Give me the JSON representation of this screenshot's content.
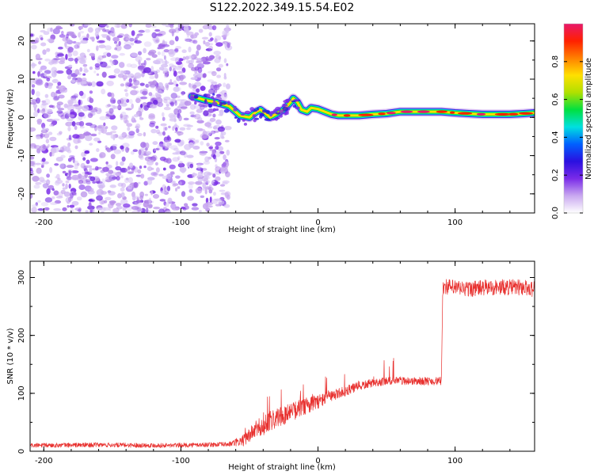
{
  "figure": {
    "title": "S122.2022.349.15.54.E02"
  },
  "chart_data": [
    {
      "type": "heatmap",
      "title": "S122.2022.349.15.54.E02",
      "xlabel": "Height of straight line (km)",
      "ylabel": "Frequency (Hz)",
      "xlim": [
        -210,
        158
      ],
      "ylim": [
        -25,
        24.5
      ],
      "xticks": [
        -200,
        -100,
        0,
        100
      ],
      "yticks": [
        -20,
        -10,
        0,
        10,
        20
      ],
      "grid": false,
      "colorbar": {
        "label": "Normalized spectral amplitude",
        "range": [
          0,
          1
        ],
        "ticks": [
          0.0,
          0.2,
          0.4,
          0.6,
          0.8
        ],
        "colormap": [
          "#ffffff",
          "#c9a8f0",
          "#7a2be8",
          "#2a10e0",
          "#0060ff",
          "#00e0e0",
          "#00e040",
          "#b0e000",
          "#ffe000",
          "#ff8000",
          "#ff2000",
          "#e8186a"
        ]
      },
      "noise_region_x": [
        -210,
        -65
      ],
      "signal_track": {
        "x": [
          -92,
          -82,
          -75,
          -65,
          -60,
          -57,
          -50,
          -45,
          -42,
          -38,
          -35,
          -30,
          -25,
          -20,
          -18,
          -15,
          -12,
          -8,
          -5,
          0,
          5,
          10,
          15,
          20,
          30,
          40,
          50,
          60,
          70,
          80,
          90,
          100,
          110,
          120,
          130,
          140,
          150,
          158
        ],
        "y": [
          5.5,
          4.5,
          4.0,
          3.0,
          1.5,
          0.5,
          0.0,
          1.5,
          2.0,
          1.0,
          0.0,
          1.0,
          2.0,
          4.0,
          5.0,
          4.0,
          2.0,
          1.5,
          2.5,
          2.2,
          1.5,
          0.8,
          0.5,
          0.5,
          0.5,
          0.8,
          1.0,
          1.5,
          1.5,
          1.5,
          1.5,
          1.2,
          1.0,
          0.8,
          0.8,
          0.8,
          1.0,
          1.2
        ]
      }
    },
    {
      "type": "line",
      "xlabel": "Height of straight line (km)",
      "ylabel": "SNR (10 * v/v)",
      "xlim": [
        -210,
        158
      ],
      "ylim": [
        0,
        328
      ],
      "xticks": [
        -200,
        -100,
        0,
        100
      ],
      "yticks": [
        0,
        100,
        200,
        300
      ],
      "grid": false,
      "line_color": "#e8312f",
      "series": [
        {
          "trend_x": [
            -210,
            -160,
            -110,
            -65,
            -55,
            -45,
            -35,
            -25,
            -15,
            -5,
            0,
            10,
            20,
            30,
            40,
            50,
            60,
            70,
            80,
            90,
            91,
            100,
            110,
            120,
            130,
            140,
            150,
            158
          ],
          "trend_y": [
            10,
            11,
            10,
            12,
            18,
            38,
            52,
            62,
            72,
            82,
            86,
            95,
            104,
            112,
            118,
            121,
            122,
            121,
            121,
            121,
            285,
            282,
            280,
            282,
            283,
            283,
            283,
            280
          ],
          "noise_x": [
            -210,
            -65,
            -55,
            -40,
            -10,
            10,
            40,
            90,
            91,
            158
          ],
          "noise_amplitude": [
            4,
            4,
            10,
            18,
            15,
            10,
            7,
            7,
            14,
            14
          ]
        }
      ]
    }
  ]
}
